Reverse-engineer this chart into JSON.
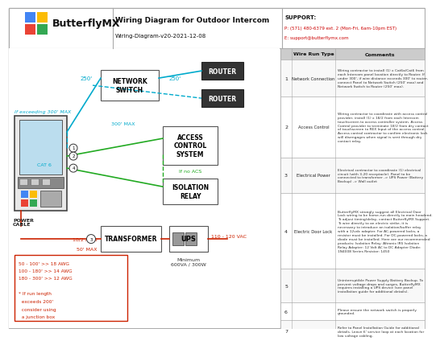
{
  "title": "Wiring Diagram for Outdoor Intercom",
  "subtitle": "Wiring-Diagram-v20-2021-12-08",
  "logo_text": "ButterflyMX",
  "support_line1": "SUPPORT:",
  "support_line2": "P: (571) 480-6379 ext. 2 (Mon-Fri, 6am-10pm EST)",
  "support_line3": "E: support@butterflymx.com",
  "bg_color": "#ffffff",
  "dark_node_bg": "#333333",
  "cyan_color": "#00aacc",
  "green_color": "#22aa22",
  "red_color": "#cc2200",
  "logo_colors": [
    "#4285F4",
    "#FBBC05",
    "#EA4335",
    "#34A853"
  ],
  "table_rows": [
    {
      "num": "1",
      "type": "Network Connection",
      "comment": "Wiring contractor to install (1) x Cat6a/Cat6 from each Intercom panel location directly to Router. If under 300', if wire distance exceeds 300' to router, connect Panel to Network Switch (250' max) and Network Switch to Router (250' max)."
    },
    {
      "num": "2",
      "type": "Access Control",
      "comment": "Wiring contractor to coordinate with access control provider, install (1) x 18/2 from each Intercom touchscreen to access controller system. Access Control provider to terminate 18/2 from dry contact of touchscreen to REX Input of the access control. Access control contractor to confirm electronic lock will disengages when signal is sent through dry contact relay."
    },
    {
      "num": "3",
      "type": "Electrical Power",
      "comment": "Electrical contractor to coordinate (1) electrical circuit (with 3-20 receptacle). Panel to be connected to transformer -> UPS Power (Battery Backup) -> Wall outlet"
    },
    {
      "num": "4",
      "type": "Electric Door Lock",
      "comment": "ButterflyMX strongly suggest all Electrical Door Lock wiring to be home-run directly to main headend. To adjust timing/delay, contact ButterflyMX Support. To wire directly to an electric strike, it is necessary to introduce an isolation/buffer relay with a 12vdc adapter. For AC-powered locks, a resistor must be installed. For DC-powered locks, a diode must be installed. Here are our recommended products: Isolation Relay: Altronix IR5 Isolation Relay Adapter: 12 Volt AC to DC Adapter Diode: 1N4008 Series Resistor: 1450"
    },
    {
      "num": "5",
      "type": "",
      "comment": "Uninterruptible Power Supply Battery Backup. To prevent voltage drops and surges, ButterflyMX requires installing a UPS device (see panel installation guide for additional details)."
    },
    {
      "num": "6",
      "type": "",
      "comment": "Please ensure the network switch is properly grounded."
    },
    {
      "num": "7",
      "type": "",
      "comment": "Refer to Panel Installation Guide for additional details. Leave 6' service loop at each location for low voltage cabling."
    }
  ]
}
